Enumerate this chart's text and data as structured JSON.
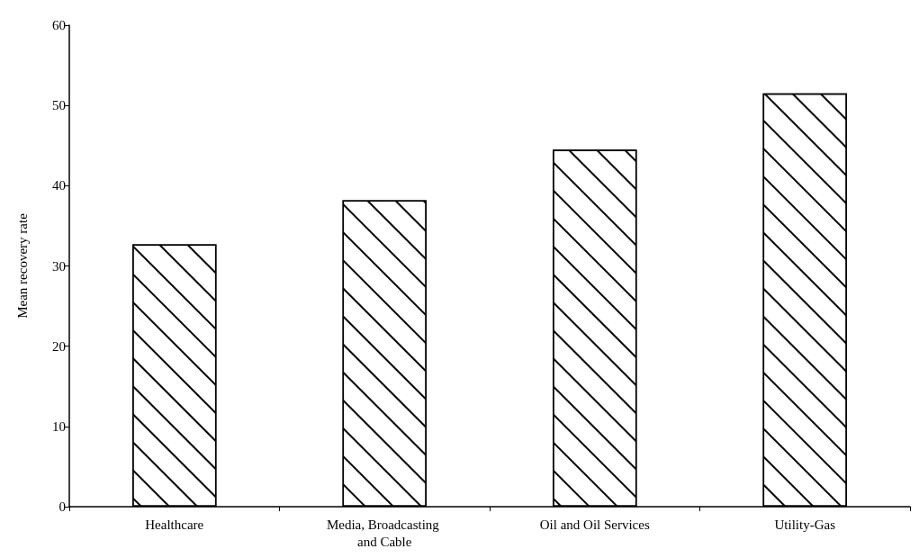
{
  "chart_data": {
    "type": "bar",
    "ylabel": "Mean recovery rate",
    "categories": [
      "Healthcare",
      "Media, Broadcasting and Cable",
      "Oil and Oil Services",
      "Utility-Gas"
    ],
    "values": [
      32.7,
      38.2,
      44.5,
      51.5
    ],
    "color": "#ffffff",
    "ylim": [
      0,
      60
    ],
    "yticks": [
      0,
      10,
      20,
      30,
      40,
      50,
      60
    ],
    "grid": false
  }
}
